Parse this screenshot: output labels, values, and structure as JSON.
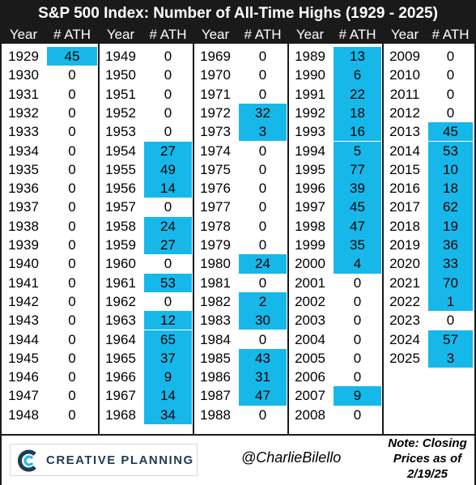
{
  "title": "S&P 500 Index: Number of All-Time Highs (1929 - 2025)",
  "header": {
    "year": "Year",
    "ath": "# ATH"
  },
  "highlight_color": "#16b8ea",
  "columns": [
    {
      "rows": [
        {
          "year": "1929",
          "ath": "45"
        },
        {
          "year": "1930",
          "ath": "0"
        },
        {
          "year": "1931",
          "ath": "0"
        },
        {
          "year": "1932",
          "ath": "0"
        },
        {
          "year": "1933",
          "ath": "0"
        },
        {
          "year": "1934",
          "ath": "0"
        },
        {
          "year": "1935",
          "ath": "0"
        },
        {
          "year": "1936",
          "ath": "0"
        },
        {
          "year": "1937",
          "ath": "0"
        },
        {
          "year": "1938",
          "ath": "0"
        },
        {
          "year": "1939",
          "ath": "0"
        },
        {
          "year": "1940",
          "ath": "0"
        },
        {
          "year": "1941",
          "ath": "0"
        },
        {
          "year": "1942",
          "ath": "0"
        },
        {
          "year": "1943",
          "ath": "0"
        },
        {
          "year": "1944",
          "ath": "0"
        },
        {
          "year": "1945",
          "ath": "0"
        },
        {
          "year": "1946",
          "ath": "0"
        },
        {
          "year": "1947",
          "ath": "0"
        },
        {
          "year": "1948",
          "ath": "0"
        }
      ]
    },
    {
      "rows": [
        {
          "year": "1949",
          "ath": "0"
        },
        {
          "year": "1950",
          "ath": "0"
        },
        {
          "year": "1951",
          "ath": "0"
        },
        {
          "year": "1952",
          "ath": "0"
        },
        {
          "year": "1953",
          "ath": "0"
        },
        {
          "year": "1954",
          "ath": "27"
        },
        {
          "year": "1955",
          "ath": "49"
        },
        {
          "year": "1956",
          "ath": "14"
        },
        {
          "year": "1957",
          "ath": "0"
        },
        {
          "year": "1958",
          "ath": "24"
        },
        {
          "year": "1959",
          "ath": "27"
        },
        {
          "year": "1960",
          "ath": "0"
        },
        {
          "year": "1961",
          "ath": "53"
        },
        {
          "year": "1962",
          "ath": "0"
        },
        {
          "year": "1963",
          "ath": "12"
        },
        {
          "year": "1964",
          "ath": "65"
        },
        {
          "year": "1965",
          "ath": "37"
        },
        {
          "year": "1966",
          "ath": "9"
        },
        {
          "year": "1967",
          "ath": "14"
        },
        {
          "year": "1968",
          "ath": "34"
        }
      ]
    },
    {
      "rows": [
        {
          "year": "1969",
          "ath": "0"
        },
        {
          "year": "1970",
          "ath": "0"
        },
        {
          "year": "1971",
          "ath": "0"
        },
        {
          "year": "1972",
          "ath": "32"
        },
        {
          "year": "1973",
          "ath": "3"
        },
        {
          "year": "1974",
          "ath": "0"
        },
        {
          "year": "1975",
          "ath": "0"
        },
        {
          "year": "1976",
          "ath": "0"
        },
        {
          "year": "1977",
          "ath": "0"
        },
        {
          "year": "1978",
          "ath": "0"
        },
        {
          "year": "1979",
          "ath": "0"
        },
        {
          "year": "1980",
          "ath": "24"
        },
        {
          "year": "1981",
          "ath": "0"
        },
        {
          "year": "1982",
          "ath": "2"
        },
        {
          "year": "1983",
          "ath": "30"
        },
        {
          "year": "1984",
          "ath": "0"
        },
        {
          "year": "1985",
          "ath": "43"
        },
        {
          "year": "1986",
          "ath": "31"
        },
        {
          "year": "1987",
          "ath": "47"
        },
        {
          "year": "1988",
          "ath": "0"
        }
      ]
    },
    {
      "rows": [
        {
          "year": "1989",
          "ath": "13"
        },
        {
          "year": "1990",
          "ath": "6"
        },
        {
          "year": "1991",
          "ath": "22"
        },
        {
          "year": "1992",
          "ath": "18"
        },
        {
          "year": "1993",
          "ath": "16"
        },
        {
          "year": "1994",
          "ath": "5"
        },
        {
          "year": "1995",
          "ath": "77"
        },
        {
          "year": "1996",
          "ath": "39"
        },
        {
          "year": "1997",
          "ath": "45"
        },
        {
          "year": "1998",
          "ath": "47"
        },
        {
          "year": "1999",
          "ath": "35"
        },
        {
          "year": "2000",
          "ath": "4"
        },
        {
          "year": "2001",
          "ath": "0"
        },
        {
          "year": "2002",
          "ath": "0"
        },
        {
          "year": "2003",
          "ath": "0"
        },
        {
          "year": "2004",
          "ath": "0"
        },
        {
          "year": "2005",
          "ath": "0"
        },
        {
          "year": "2006",
          "ath": "0"
        },
        {
          "year": "2007",
          "ath": "9"
        },
        {
          "year": "2008",
          "ath": "0"
        }
      ]
    },
    {
      "rows": [
        {
          "year": "2009",
          "ath": "0"
        },
        {
          "year": "2010",
          "ath": "0"
        },
        {
          "year": "2011",
          "ath": "0"
        },
        {
          "year": "2012",
          "ath": "0"
        },
        {
          "year": "2013",
          "ath": "45"
        },
        {
          "year": "2014",
          "ath": "53"
        },
        {
          "year": "2015",
          "ath": "10"
        },
        {
          "year": "2016",
          "ath": "18"
        },
        {
          "year": "2017",
          "ath": "62"
        },
        {
          "year": "2018",
          "ath": "19"
        },
        {
          "year": "2019",
          "ath": "36"
        },
        {
          "year": "2020",
          "ath": "33"
        },
        {
          "year": "2021",
          "ath": "70"
        },
        {
          "year": "2022",
          "ath": "1"
        },
        {
          "year": "2023",
          "ath": "0"
        },
        {
          "year": "2024",
          "ath": "57"
        },
        {
          "year": "2025",
          "ath": "3"
        }
      ]
    }
  ],
  "footer": {
    "logo_text": "CREATIVE PLANNING",
    "logo_icon": "creative-planning-logo-icon",
    "handle": "@CharlieBilello",
    "note_lines": [
      "Note: Closing",
      "Prices as of",
      "2/19/25"
    ]
  }
}
